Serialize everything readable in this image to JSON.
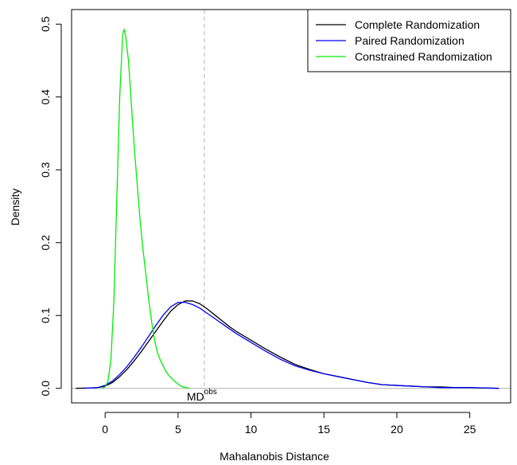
{
  "chart_data": {
    "type": "line",
    "title": "",
    "xlabel": "Mahalanobis Distance",
    "ylabel": "Density",
    "xlim": [
      -2.3,
      27.8
    ],
    "ylim": [
      -0.02,
      0.52
    ],
    "xticks": [
      0,
      5,
      10,
      15,
      20,
      25
    ],
    "yticks": [
      0.0,
      0.1,
      0.2,
      0.3,
      0.4,
      0.5
    ],
    "xtick_labels": [
      "0",
      "5",
      "10",
      "15",
      "20",
      "25"
    ],
    "ytick_labels": [
      "0.0",
      "0.1",
      "0.2",
      "0.3",
      "0.4",
      "0.5"
    ],
    "grid": false,
    "legend_position": "top-right",
    "reference_line": {
      "x": 6.8,
      "style": "dashed",
      "color": "#b0b0b0"
    },
    "baseline": {
      "y": 0,
      "color": "#b0b0b0"
    },
    "annotation": {
      "text": "MD",
      "superscript": "obs",
      "x": 6.8
    },
    "series": [
      {
        "name": "Complete Randomization",
        "color": "#000000",
        "x": [
          -2.0,
          -1.0,
          -0.5,
          0.0,
          0.5,
          1.0,
          1.5,
          2.0,
          2.5,
          3.0,
          3.5,
          4.0,
          4.5,
          5.0,
          5.5,
          6.0,
          6.5,
          7.0,
          7.5,
          8.0,
          8.5,
          9.0,
          9.5,
          10.0,
          11.0,
          12.0,
          13.0,
          14.0,
          15.0,
          16.0,
          17.0,
          18.0,
          19.0,
          20.0,
          21.0,
          22.0,
          23.0,
          24.0,
          25.0,
          26.0,
          27.0
        ],
        "y": [
          0.0,
          0.0005,
          0.001,
          0.003,
          0.008,
          0.016,
          0.026,
          0.038,
          0.051,
          0.065,
          0.079,
          0.093,
          0.106,
          0.115,
          0.12,
          0.12,
          0.116,
          0.109,
          0.101,
          0.093,
          0.085,
          0.078,
          0.072,
          0.066,
          0.054,
          0.043,
          0.033,
          0.026,
          0.02,
          0.016,
          0.012,
          0.008,
          0.005,
          0.004,
          0.003,
          0.002,
          0.002,
          0.001,
          0.001,
          0.0005,
          0.0
        ]
      },
      {
        "name": "Paired Randomization",
        "color": "#0000ee",
        "x": [
          -1.5,
          -1.0,
          -0.5,
          0.0,
          0.5,
          1.0,
          1.5,
          2.0,
          2.5,
          3.0,
          3.5,
          4.0,
          4.5,
          5.0,
          5.5,
          6.0,
          6.5,
          7.0,
          7.5,
          8.0,
          8.5,
          9.0,
          9.5,
          10.0,
          11.0,
          12.0,
          13.0,
          14.0,
          15.0,
          16.0,
          17.0,
          18.0,
          19.0,
          20.0,
          21.0,
          22.0,
          23.0,
          24.0,
          25.0,
          26.0,
          27.0
        ],
        "y": [
          0.0,
          0.0005,
          0.001,
          0.004,
          0.01,
          0.019,
          0.03,
          0.043,
          0.057,
          0.072,
          0.087,
          0.101,
          0.112,
          0.118,
          0.118,
          0.115,
          0.11,
          0.103,
          0.096,
          0.089,
          0.082,
          0.075,
          0.069,
          0.063,
          0.051,
          0.04,
          0.031,
          0.025,
          0.02,
          0.016,
          0.012,
          0.008,
          0.005,
          0.004,
          0.003,
          0.002,
          0.001,
          0.001,
          0.001,
          0.0005,
          0.0
        ]
      },
      {
        "name": "Constrained Randomization",
        "color": "#00ee00",
        "x": [
          -0.2,
          0.0,
          0.2,
          0.4,
          0.6,
          0.8,
          1.0,
          1.2,
          1.3,
          1.4,
          1.6,
          1.8,
          2.0,
          2.2,
          2.4,
          2.6,
          2.8,
          3.0,
          3.2,
          3.4,
          3.6,
          3.8,
          4.0,
          4.2,
          4.4,
          4.6,
          4.8,
          5.0,
          5.2,
          5.5,
          5.8
        ],
        "y": [
          0.0,
          0.002,
          0.01,
          0.04,
          0.12,
          0.26,
          0.4,
          0.485,
          0.493,
          0.485,
          0.45,
          0.39,
          0.33,
          0.28,
          0.23,
          0.19,
          0.155,
          0.12,
          0.09,
          0.065,
          0.048,
          0.038,
          0.03,
          0.022,
          0.017,
          0.013,
          0.009,
          0.006,
          0.003,
          0.001,
          0.0
        ]
      }
    ]
  }
}
